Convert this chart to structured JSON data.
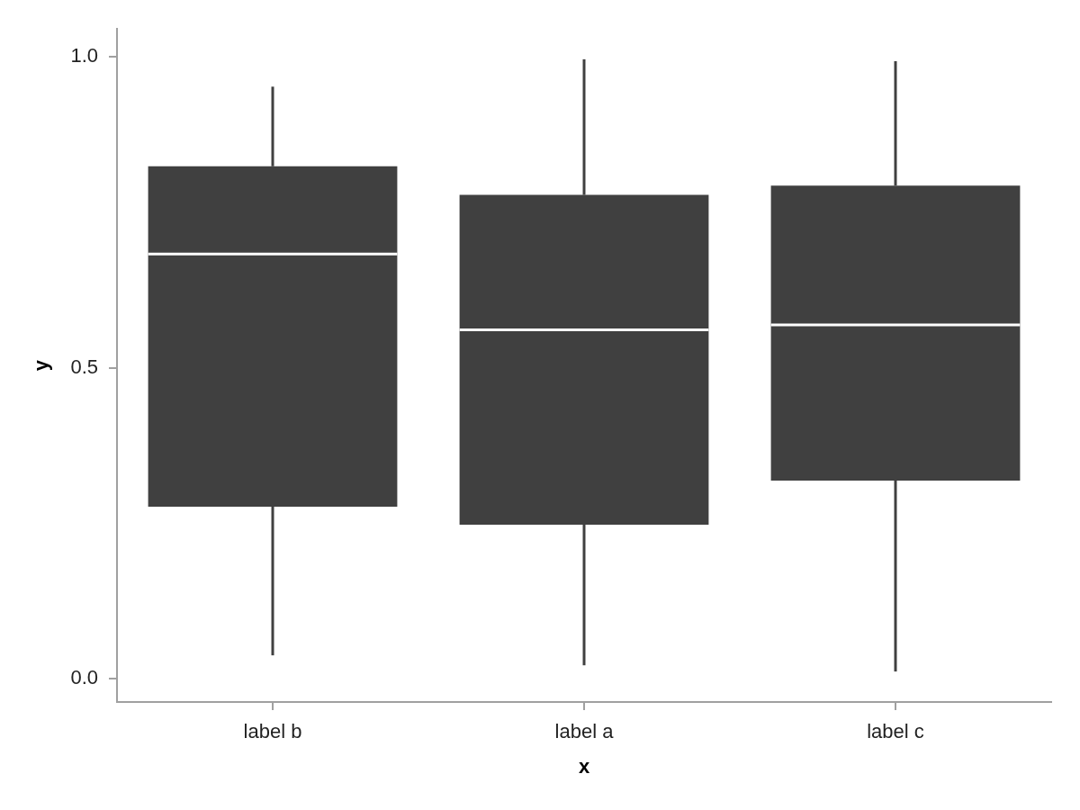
{
  "chart_data": {
    "type": "box",
    "xlabel": "x",
    "ylabel": "y",
    "categories": [
      "label b",
      "label a",
      "label c"
    ],
    "boxes": [
      {
        "low": 0.038,
        "q1": 0.277,
        "median": 0.683,
        "q3": 0.824,
        "high": 0.952
      },
      {
        "low": 0.022,
        "q1": 0.248,
        "median": 0.561,
        "q3": 0.778,
        "high": 0.996
      },
      {
        "low": 0.012,
        "q1": 0.319,
        "median": 0.569,
        "q3": 0.793,
        "high": 0.993
      }
    ],
    "color": "#404040",
    "ylim": [
      -0.037,
      1.045
    ],
    "yticks": [
      {
        "value": 0,
        "label": "0.0"
      },
      0.5,
      {
        "value": 1,
        "label": "1.0"
      }
    ],
    "grid": false,
    "legend": false
  }
}
